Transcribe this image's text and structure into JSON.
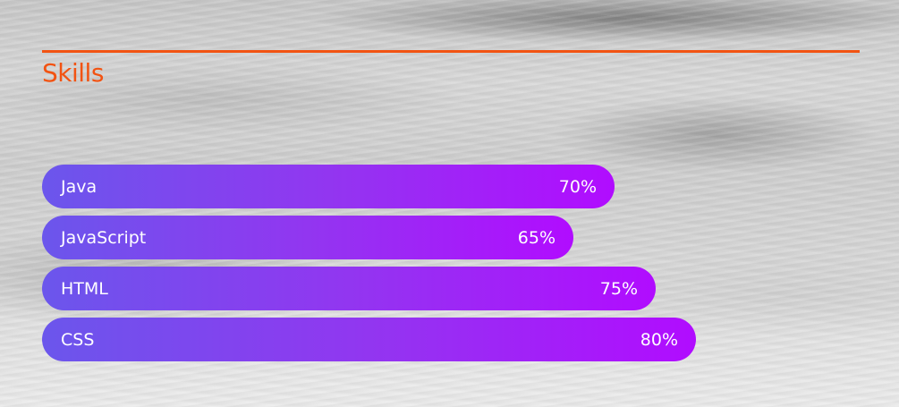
{
  "section": {
    "title": "Skills",
    "accent_color": "#f25312"
  },
  "bar_gradient": [
    "#6b56ec",
    "#b10cff"
  ],
  "skills": [
    {
      "name": "Java",
      "percent_label": "70%",
      "level": 0.7
    },
    {
      "name": "JavaScript",
      "percent_label": "65%",
      "level": 0.65
    },
    {
      "name": "HTML",
      "percent_label": "75%",
      "level": 0.75
    },
    {
      "name": "CSS",
      "percent_label": "80%",
      "level": 0.8
    }
  ]
}
